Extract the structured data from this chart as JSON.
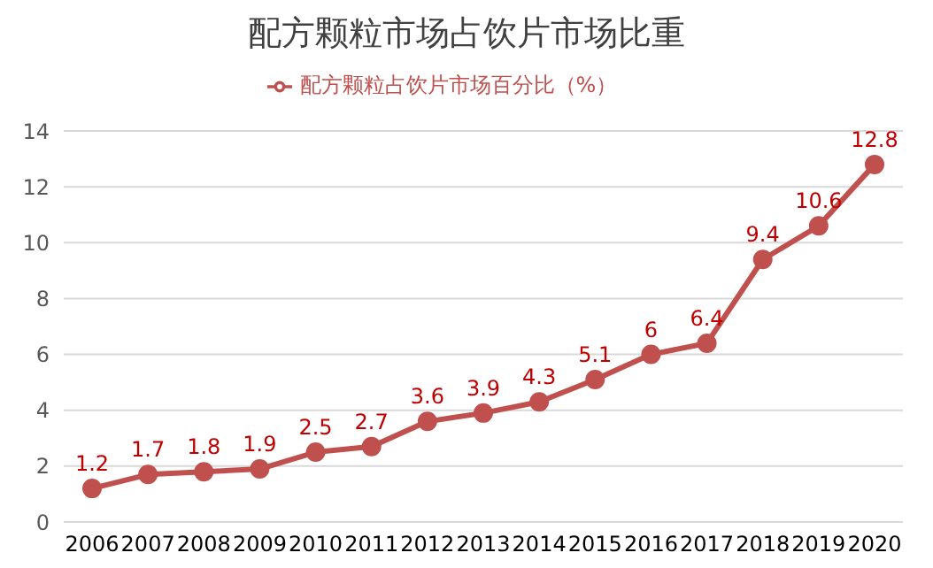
{
  "chart_data": {
    "type": "line",
    "title": "配方颗粒市场占饮片市场比重",
    "categories": [
      "2006",
      "2007",
      "2008",
      "2009",
      "2010",
      "2011",
      "2012",
      "2013",
      "2014",
      "2015",
      "2016",
      "2017",
      "2018",
      "2019",
      "2020"
    ],
    "series": [
      {
        "name": "配方颗粒占饮片市场百分比（%）",
        "color": "#c0504d",
        "values": [
          1.2,
          1.7,
          1.8,
          1.9,
          2.5,
          2.7,
          3.6,
          3.9,
          4.3,
          5.1,
          6,
          6.4,
          9.4,
          10.6,
          12.8
        ]
      }
    ],
    "ylim": [
      0,
      14
    ],
    "yticks": [
      0,
      2,
      4,
      6,
      8,
      10,
      12,
      14
    ],
    "grid": "y",
    "legend": "top",
    "marker": "circle",
    "line_style": "solid",
    "data_labels": true
  }
}
